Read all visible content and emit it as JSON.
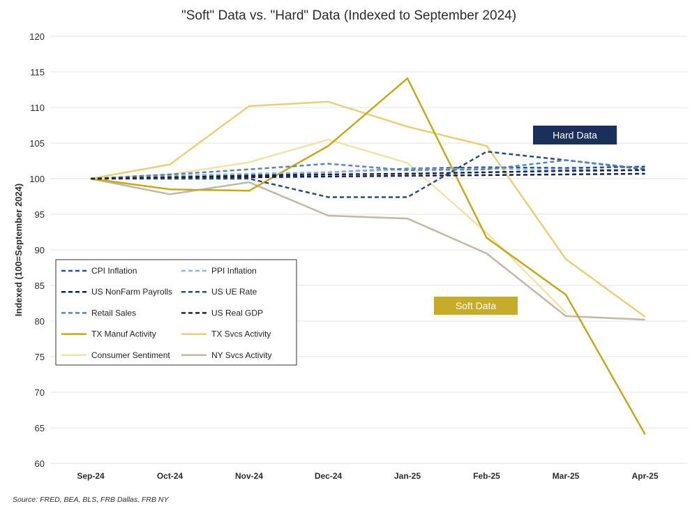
{
  "chart_data": {
    "type": "line",
    "title": "\"Soft\" Data vs. \"Hard\" Data (Indexed to September 2024)",
    "ylabel": "Indexed (100=September 2024)",
    "xlabel": "",
    "source": "Source: FRED, BEA, BLS, FRB Dallas, FRB NY",
    "categories": [
      "Sep-24",
      "Oct-24",
      "Nov-24",
      "Dec-24",
      "Jan-25",
      "Feb-25",
      "Mar-25",
      "Apr-25"
    ],
    "ylim": [
      60,
      120
    ],
    "yticks": [
      "60",
      "65",
      "70",
      "75",
      "80",
      "85",
      "90",
      "95",
      "100",
      "105",
      "110",
      "115",
      "120"
    ],
    "grid": true,
    "legend_position": "lower-left",
    "annotations": [
      {
        "text": "Hard Data",
        "category": "Feb-25",
        "value": 103.5,
        "bg": "#1a2f5a",
        "color": "#ffffff"
      },
      {
        "text": "Soft Data",
        "category": "Feb-25",
        "value": 82.0,
        "bg": "#c9ab2a",
        "color": "#ffffff"
      }
    ],
    "series": [
      {
        "name": "CPI Inflation",
        "color": "#1f4f9c",
        "dash": true,
        "width": 2.5,
        "values": [
          100,
          100.2,
          100.5,
          100.9,
          101.4,
          101.6,
          101.5,
          101.7
        ]
      },
      {
        "name": "PPI Inflation",
        "color": "#8fb4e3",
        "dash": true,
        "width": 2.5,
        "values": [
          100,
          100.4,
          100.7,
          100.9,
          101.3,
          101.4,
          101.3,
          101.2
        ]
      },
      {
        "name": "US NonFarm Payrolls",
        "color": "#0d2458",
        "dash": true,
        "width": 2.5,
        "values": [
          100,
          100.1,
          100.2,
          100.3,
          100.4,
          100.5,
          100.6,
          100.7
        ]
      },
      {
        "name": "US UE Rate",
        "color": "#2a4d73",
        "dash": true,
        "width": 2.5,
        "values": [
          100,
          100.0,
          100.0,
          97.4,
          97.4,
          103.8,
          102.6,
          101.3
        ]
      },
      {
        "name": "Retail Sales",
        "color": "#5b85b8",
        "dash": true,
        "width": 2.5,
        "values": [
          100,
          100.6,
          101.3,
          102.1,
          101.2,
          101.3,
          102.6,
          101.4
        ]
      },
      {
        "name": "US Real GDP",
        "color": "#1e2433",
        "dash": true,
        "width": 2.5,
        "values": [
          100,
          100.2,
          100.4,
          100.6,
          100.7,
          100.9,
          101.1,
          101.2
        ]
      },
      {
        "name": "TX Manuf Activity",
        "color": "#c4a81e",
        "dash": false,
        "width": 2.5,
        "values": [
          100,
          98.5,
          98.3,
          104.6,
          114.1,
          91.7,
          83.7,
          64.1
        ]
      },
      {
        "name": "TX Svcs Activity",
        "color": "#e6d07a",
        "dash": false,
        "width": 2.5,
        "values": [
          100,
          102.0,
          110.2,
          110.8,
          107.3,
          104.6,
          88.7,
          80.6
        ]
      },
      {
        "name": "Consumer Sentiment",
        "color": "#f0e4a8",
        "dash": false,
        "width": 2.5,
        "values": [
          100,
          100.6,
          102.3,
          105.5,
          102.2,
          92.4,
          81.2,
          null
        ]
      },
      {
        "name": "NY Svcs Activity",
        "color": "#c2b8a6",
        "dash": false,
        "width": 2.5,
        "values": [
          100,
          97.8,
          99.5,
          94.8,
          94.4,
          89.5,
          80.7,
          80.2
        ]
      }
    ]
  }
}
